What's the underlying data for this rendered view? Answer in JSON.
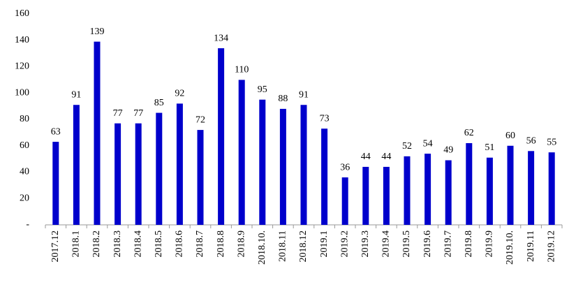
{
  "chart_data": {
    "type": "bar",
    "categories": [
      "2017.12",
      "2018.1",
      "2018.2",
      "2018.3",
      "2018.4",
      "2018.5",
      "2018.6",
      "2018.7",
      "2018.8",
      "2018.9",
      "2018.10.",
      "2018.11",
      "2018.12",
      "2019.1",
      "2019.2",
      "2019.3",
      "2019.4",
      "2019.5",
      "2019.6",
      "2019.7",
      "2019.8",
      "2019.9",
      "2019.10.",
      "2019.11",
      "2019.12"
    ],
    "values": [
      63,
      91,
      139,
      77,
      77,
      85,
      92,
      72,
      134,
      110,
      95,
      88,
      91,
      73,
      36,
      44,
      44,
      52,
      54,
      49,
      62,
      51,
      60,
      56,
      55
    ],
    "color": "#0000cc",
    "ylim": [
      0,
      160
    ],
    "yticks": [
      {
        "value": 0,
        "label": "-"
      },
      20,
      40,
      60,
      80,
      100,
      120,
      140,
      160
    ]
  }
}
